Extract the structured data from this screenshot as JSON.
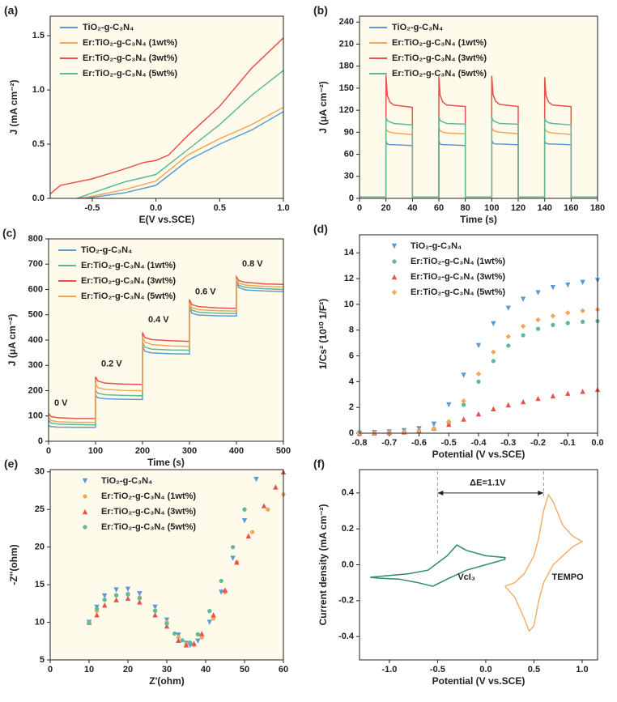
{
  "chart_data": [
    {
      "type": "line",
      "label": "(a)",
      "xlabel": "E(V vs.SCE)",
      "ylabel": "J (mA cm⁻²)",
      "background": "#fffbea",
      "legend": "upper left",
      "xlim": [
        -0.83,
        1.0
      ],
      "ylim": [
        0,
        1.68
      ],
      "xticks": [
        -0.5,
        {
          "value": 0,
          "label": "0.0"
        },
        0.5,
        {
          "value": 1,
          "label": "1.0"
        }
      ],
      "yticks": [
        {
          "value": 0,
          "label": "0.0"
        },
        0.5,
        {
          "value": 1,
          "label": "1.0"
        },
        1.5
      ],
      "series": [
        {
          "name": "TiO₂-g-C₃N₄",
          "color": "#5b9bd5",
          "x": [
            -0.55,
            -0.5,
            -0.25,
            0,
            0.25,
            0.5,
            0.75,
            1.0
          ],
          "values": [
            0,
            0.01,
            0.05,
            0.12,
            0.35,
            0.5,
            0.63,
            0.8
          ]
        },
        {
          "name": "Er:TiO₂-g-C₃N₄ (1wt%)",
          "color": "#f5a55a",
          "x": [
            -0.6,
            -0.5,
            -0.25,
            0,
            0.25,
            0.5,
            0.75,
            1.0
          ],
          "values": [
            0,
            0.02,
            0.08,
            0.16,
            0.4,
            0.55,
            0.68,
            0.84
          ]
        },
        {
          "name": "Er:TiO₂-g-C₃N₄ (3wt%)",
          "color": "#e8524a",
          "x": [
            -0.83,
            -0.75,
            -0.5,
            -0.25,
            -0.1,
            0,
            0.1,
            0.25,
            0.5,
            0.75,
            1.0
          ],
          "values": [
            0.04,
            0.12,
            0.18,
            0.27,
            0.33,
            0.35,
            0.4,
            0.58,
            0.85,
            1.2,
            1.48
          ]
        },
        {
          "name": "Er:TiO₂-g-C₃N₄ (5wt%)",
          "color": "#5fb89a",
          "x": [
            -0.62,
            -0.5,
            -0.25,
            0,
            0.25,
            0.5,
            0.75,
            1.0
          ],
          "values": [
            0,
            0.05,
            0.15,
            0.22,
            0.45,
            0.68,
            0.95,
            1.18
          ]
        }
      ]
    },
    {
      "type": "line",
      "label": "(b)",
      "xlabel": "Time (s)",
      "ylabel": "J (μA cm⁻²)",
      "background": "#fffbea",
      "legend": "upper left",
      "xlim": [
        0,
        180
      ],
      "ylim": [
        0,
        248
      ],
      "xticks": [
        0,
        20,
        40,
        60,
        80,
        100,
        120,
        140,
        160,
        180
      ],
      "yticks": [
        0,
        30,
        60,
        90,
        120,
        150,
        180,
        210,
        240
      ],
      "x": [
        0,
        20,
        20,
        21,
        23,
        26,
        40,
        40,
        60,
        60,
        61,
        63,
        66,
        80,
        80,
        100,
        100,
        101,
        103,
        106,
        120,
        120,
        140,
        140,
        141,
        143,
        146,
        160,
        160,
        180
      ],
      "series": [
        {
          "name": "TiO₂-g-C₃N₄",
          "color": "#5b9bd5",
          "values": [
            2,
            2,
            78,
            74,
            73,
            73,
            72,
            2,
            2,
            78,
            74,
            73,
            73,
            72,
            2,
            2,
            79,
            75,
            74,
            74,
            73,
            2,
            2,
            78,
            75,
            74,
            74,
            73,
            2,
            2
          ]
        },
        {
          "name": "Er:TiO₂-g-C₃N₄ (1wt%)",
          "color": "#f5a55a",
          "values": [
            2,
            2,
            95,
            92,
            90,
            89,
            87,
            2,
            2,
            96,
            92,
            90,
            89,
            88,
            2,
            2,
            96,
            93,
            91,
            90,
            88,
            2,
            2,
            95,
            92,
            90,
            89,
            87,
            2,
            2
          ]
        },
        {
          "name": "Er:TiO₂-g-C₃N₄ (3wt%)",
          "color": "#e8524a",
          "values": [
            2,
            2,
            168,
            140,
            131,
            127,
            124,
            2,
            2,
            166,
            140,
            131,
            127,
            125,
            2,
            2,
            167,
            141,
            132,
            128,
            125,
            2,
            2,
            165,
            140,
            131,
            127,
            125,
            2,
            2
          ]
        },
        {
          "name": "Er:TiO₂-g-C₃N₄ (5wt%)",
          "color": "#5fb89a",
          "values": [
            2,
            2,
            110,
            106,
            104,
            102,
            100,
            2,
            2,
            111,
            106,
            104,
            102,
            101,
            2,
            2,
            110,
            106,
            104,
            102,
            101,
            2,
            2,
            109,
            105,
            103,
            102,
            100,
            2,
            2
          ]
        }
      ]
    },
    {
      "type": "line",
      "label": "(c)",
      "xlabel": "Time (s)",
      "ylabel": "J (μA cm⁻²)",
      "background": "#fffbea",
      "legend": "upper left",
      "xlim": [
        0,
        500
      ],
      "ylim": [
        0,
        800
      ],
      "xticks": [
        0,
        100,
        200,
        300,
        400,
        500
      ],
      "yticks": [
        0,
        100,
        200,
        300,
        400,
        500,
        600,
        700,
        800
      ],
      "annotations": [
        "0 V",
        "0.2 V",
        "0.4 V",
        "0.6 V",
        "0.8 V"
      ],
      "x": [
        0,
        5,
        20,
        60,
        100,
        100,
        105,
        120,
        160,
        200,
        200,
        205,
        220,
        260,
        300,
        300,
        305,
        320,
        360,
        400,
        400,
        405,
        420,
        460,
        500
      ],
      "series": [
        {
          "name": "TiO₂-g-C₃N₄",
          "color": "#5b9bd5",
          "values": [
            62,
            58,
            56,
            55,
            55,
            182,
            172,
            168,
            166,
            165,
            376,
            356,
            349,
            346,
            345,
            526,
            506,
            499,
            496,
            495,
            627,
            607,
            598,
            594,
            592
          ]
        },
        {
          "name": "Er:TiO₂-g-C₃N₄ (1wt%)",
          "color": "#5fb89a",
          "values": [
            82,
            72,
            68,
            66,
            65,
            202,
            190,
            184,
            181,
            180,
            392,
            372,
            364,
            361,
            360,
            536,
            518,
            510,
            506,
            505,
            636,
            616,
            608,
            603,
            600
          ]
        },
        {
          "name": "Er:TiO₂-g-C₃N₄ (3wt%)",
          "color": "#e8524a",
          "values": [
            110,
            98,
            93,
            90,
            90,
            255,
            238,
            230,
            226,
            225,
            430,
            410,
            402,
            397,
            395,
            560,
            540,
            532,
            527,
            525,
            650,
            635,
            628,
            622,
            620
          ]
        },
        {
          "name": "Er:TiO₂-g-C₃N₄ (5wt%)",
          "color": "#f5a55a",
          "values": [
            95,
            82,
            77,
            75,
            75,
            228,
            212,
            205,
            201,
            200,
            412,
            392,
            382,
            377,
            375,
            546,
            528,
            520,
            516,
            515,
            642,
            625,
            617,
            612,
            610
          ]
        }
      ]
    },
    {
      "type": "scatter",
      "label": "(d)",
      "xlabel": "Potential (V vs.SCE)",
      "ylabel": "1/Cs² (10¹⁰ 1/F²)",
      "legend": "upper left",
      "xlim": [
        -0.8,
        0
      ],
      "ylim": [
        0,
        15.4
      ],
      "xticks": [
        -0.8,
        -0.7,
        -0.6,
        -0.5,
        -0.4,
        -0.3,
        -0.2,
        -0.1,
        {
          "value": 0,
          "label": "0.0"
        }
      ],
      "yticks": [
        0,
        2,
        4,
        6,
        8,
        10,
        12,
        14
      ],
      "x": [
        -0.8,
        -0.75,
        -0.7,
        -0.65,
        -0.6,
        -0.55,
        -0.5,
        -0.45,
        -0.4,
        -0.35,
        -0.3,
        -0.25,
        -0.2,
        -0.15,
        -0.1,
        -0.05,
        0
      ],
      "series": [
        {
          "name": "TiO₂-g-C₃N₄",
          "color": "#5b9bd5",
          "marker": "triangle-down",
          "values": [
            0,
            0.05,
            0.1,
            0.2,
            0.35,
            0.7,
            2.2,
            4.5,
            6.8,
            8.5,
            9.7,
            10.4,
            10.9,
            11.3,
            11.5,
            11.7,
            11.85
          ]
        },
        {
          "name": "Er:TiO₂-g-C₃N₄ (1wt%)",
          "color": "#5fb89a",
          "marker": "circle",
          "values": [
            0,
            0.02,
            0.05,
            0.1,
            0.2,
            0.35,
            0.8,
            2.2,
            4.0,
            5.6,
            6.8,
            7.6,
            8.1,
            8.4,
            8.55,
            8.65,
            8.7
          ]
        },
        {
          "name": "Er:TiO₂-g-C₃N₄ (3wt%)",
          "color": "#e8524a",
          "marker": "triangle-up",
          "values": [
            0,
            0.02,
            0.05,
            0.1,
            0.2,
            0.4,
            0.7,
            1.1,
            1.5,
            1.9,
            2.2,
            2.45,
            2.7,
            2.9,
            3.1,
            3.25,
            3.4
          ]
        },
        {
          "name": "Er:TiO₂-g-C₃N₄ (5wt%)",
          "color": "#f5a55a",
          "marker": "diamond",
          "values": [
            0,
            0.02,
            0.05,
            0.1,
            0.2,
            0.35,
            0.9,
            2.5,
            4.6,
            6.3,
            7.5,
            8.3,
            8.8,
            9.1,
            9.35,
            9.5,
            9.6
          ]
        }
      ]
    },
    {
      "type": "scatter",
      "label": "(e)",
      "xlabel": "Z'(ohm)",
      "ylabel": "-Z''(ohm)",
      "background": "#fffbea",
      "legend": "upper left",
      "xlim": [
        0,
        60
      ],
      "ylim": [
        5,
        30.3
      ],
      "xticks": [
        0,
        10,
        20,
        30,
        40,
        50,
        60
      ],
      "yticks": [
        5,
        10,
        15,
        20,
        25,
        30
      ],
      "series": [
        {
          "name": "TiO₂-g-C₃N₄",
          "color": "#5b9bd5",
          "marker": "triangle-down",
          "x": [
            10,
            12,
            14,
            17,
            20,
            23,
            27,
            30,
            33,
            35,
            36,
            38,
            41,
            44,
            47,
            50,
            53
          ],
          "values": [
            10,
            12,
            13.5,
            14.3,
            14.4,
            13.8,
            12,
            10.3,
            8.3,
            7.2,
            6.9,
            7.5,
            10,
            14,
            18.5,
            23.5,
            29
          ]
        },
        {
          "name": "Er:TiO₂-g-C₃N₄ (1wt%)",
          "color": "#f5a55a",
          "marker": "circle",
          "x": [
            10,
            12,
            14,
            17,
            20,
            23,
            27,
            30,
            33,
            35,
            37,
            39,
            42,
            45,
            48,
            52,
            56,
            60
          ],
          "values": [
            10,
            11.5,
            13,
            13.6,
            13.8,
            13.3,
            11.6,
            10,
            8,
            7.1,
            7,
            8,
            10.5,
            14,
            18,
            22,
            25,
            27
          ]
        },
        {
          "name": "Er:TiO₂-g-C₃N₄ (3wt%)",
          "color": "#e8524a",
          "marker": "triangle-up",
          "x": [
            10,
            12,
            14,
            17,
            20,
            23,
            27,
            30,
            33,
            35,
            37,
            39,
            42,
            45,
            48,
            51,
            55,
            58,
            60
          ],
          "values": [
            10,
            11,
            12.3,
            13,
            13.2,
            12.7,
            11,
            9.5,
            7.6,
            7,
            7.2,
            8.5,
            11,
            14.3,
            18,
            21.5,
            25.5,
            28,
            30
          ]
        },
        {
          "name": "Er:TiO₂-g-C₃N₄ (5wt%)",
          "color": "#5fb89a",
          "marker": "circle",
          "x": [
            10,
            12,
            14,
            17,
            20,
            23,
            27,
            30,
            32,
            34,
            36,
            38,
            41,
            44,
            47,
            50
          ],
          "values": [
            10,
            11.8,
            13,
            13.6,
            13.7,
            13.2,
            11.5,
            9.8,
            8.5,
            7.6,
            7.3,
            8.4,
            11.5,
            15.5,
            20,
            25
          ]
        }
      ]
    },
    {
      "type": "line",
      "label": "(f)",
      "xlabel": "Potential (V vs.SCE)",
      "ylabel": "Current density (mA cm⁻²)",
      "xlim": [
        -1.31,
        1.16
      ],
      "ylim": [
        -0.53,
        0.53
      ],
      "xticks": [
        {
          "value": -1,
          "label": "-1.0"
        },
        -0.5,
        {
          "value": 0,
          "label": "0.0"
        },
        0.5,
        {
          "value": 1,
          "label": "1.0"
        }
      ],
      "yticks": [
        -0.4,
        -0.2,
        {
          "value": 0,
          "label": "0.0"
        },
        0.2,
        0.4
      ],
      "annotations": [
        "ΔE=1.1V",
        "VcI₃",
        "TEMPO"
      ],
      "series": [
        {
          "color": "#2e8b6e",
          "x": [
            -1.2,
            -1.0,
            -0.8,
            -0.6,
            -0.4,
            -0.3,
            -0.2,
            0,
            0.2,
            0.2,
            0,
            -0.2,
            -0.4,
            -0.55,
            -0.7,
            -0.9,
            -1.1,
            -1.2
          ],
          "values": [
            -0.07,
            -0.06,
            -0.05,
            -0.03,
            0.05,
            0.11,
            0.08,
            0.05,
            0.04,
            0.03,
            0,
            -0.03,
            -0.08,
            -0.12,
            -0.1,
            -0.08,
            -0.075,
            -0.07
          ]
        },
        {
          "color": "#f0b070",
          "x": [
            0.2,
            0.3,
            0.4,
            0.5,
            0.55,
            0.6,
            0.65,
            0.7,
            0.8,
            0.9,
            1.0,
            1.0,
            0.9,
            0.8,
            0.7,
            0.6,
            0.55,
            0.5,
            0.45,
            0.4,
            0.3,
            0.2
          ],
          "values": [
            -0.12,
            -0.1,
            -0.05,
            0.05,
            0.15,
            0.3,
            0.39,
            0.35,
            0.22,
            0.16,
            0.13,
            0.13,
            0.1,
            0.05,
            0,
            -0.1,
            -0.2,
            -0.34,
            -0.37,
            -0.3,
            -0.18,
            -0.12
          ]
        }
      ]
    }
  ]
}
